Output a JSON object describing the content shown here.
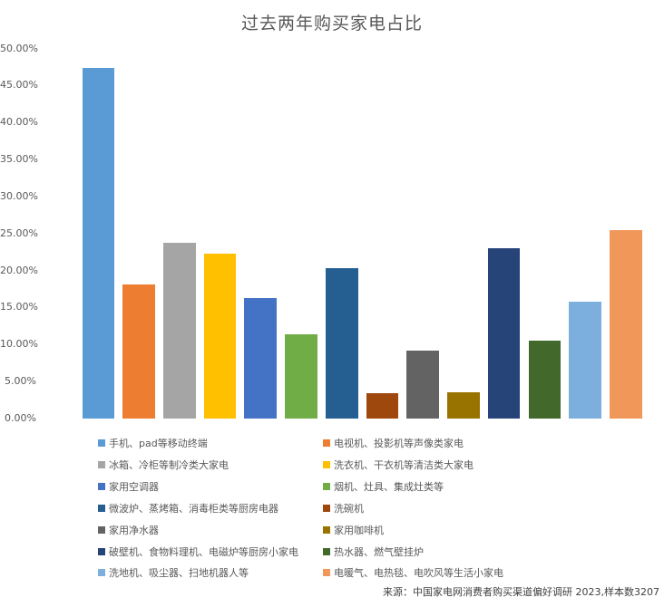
{
  "title": "过去两年购买家电占比",
  "source_note": "来源：中国家电网消费者购买渠道偏好调研 2023,样本数3207",
  "chart_data": {
    "type": "bar",
    "title": "过去两年购买家电占比",
    "xlabel": "",
    "ylabel": "",
    "ylim": [
      0,
      50
    ],
    "y_tick_step": 5,
    "y_tick_labels": [
      "0.00%",
      "5.00%",
      "10.00%",
      "15.00%",
      "20.00%",
      "25.00%",
      "30.00%",
      "35.00%",
      "40.00%",
      "45.00%",
      "50.00%"
    ],
    "grid": false,
    "legend_position": "bottom-two-columns",
    "categories": [
      "手机、pad等移动终端",
      "电视机、投影机等声像类家电",
      "冰箱、冷柜等制冷类大家电",
      "洗衣机、干衣机等清洁类大家电",
      "家用空调器",
      "烟机、灶具、集成灶类等",
      "微波炉、蒸烤箱、消毒柜类等厨房电器",
      "洗碗机",
      "家用净水器",
      "家用咖啡机",
      "破壁机、食物料理机、电磁炉等厨房小家电",
      "热水器、燃气壁挂炉",
      "洗地机、吸尘器、扫地机器人等",
      "电暖气、电热毯、电吹风等生活小家电"
    ],
    "values": [
      47.4,
      18.1,
      23.8,
      22.3,
      16.3,
      11.4,
      20.3,
      3.4,
      9.2,
      3.5,
      23.0,
      10.5,
      15.8,
      25.5
    ],
    "bar_colors": [
      "#5B9BD5",
      "#ED7D31",
      "#A5A5A5",
      "#FFC000",
      "#4472C4",
      "#70AD47",
      "#255E91",
      "#9E480E",
      "#636363",
      "#997300",
      "#264478",
      "#43682B",
      "#7CAFDD",
      "#F1975A"
    ]
  }
}
